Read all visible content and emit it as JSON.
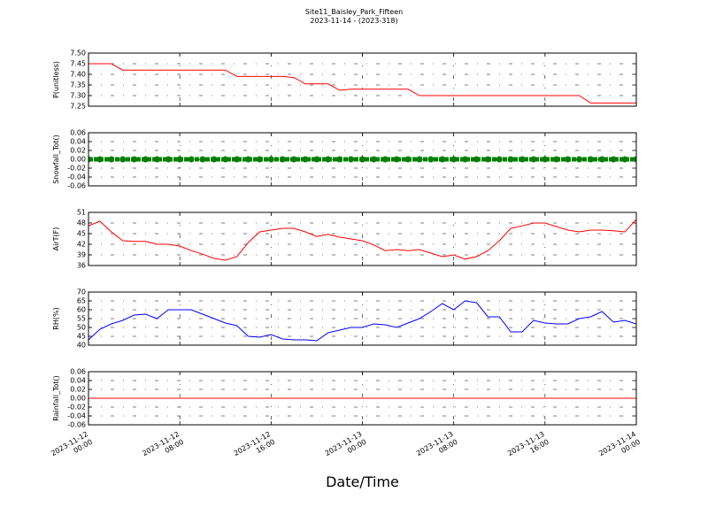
{
  "chart_data": [
    {
      "type": "line",
      "title": "Site11_Baisley_Park_Fifteen",
      "subtitle": "2023-11-14 - (2023-318)",
      "ylabel": "P(unitless)",
      "color": "#ff0000",
      "x": [
        "2023-11-12 00:00",
        "2023-11-12 01:00",
        "2023-11-12 02:00",
        "2023-11-12 03:00",
        "2023-11-12 04:00",
        "2023-11-12 05:00",
        "2023-11-12 06:00",
        "2023-11-12 07:00",
        "2023-11-12 08:00",
        "2023-11-12 09:00",
        "2023-11-12 10:00",
        "2023-11-12 11:00",
        "2023-11-12 12:00",
        "2023-11-12 13:00",
        "2023-11-12 14:00",
        "2023-11-12 15:00",
        "2023-11-12 16:00",
        "2023-11-12 17:00",
        "2023-11-12 18:00",
        "2023-11-12 19:00",
        "2023-11-12 20:00",
        "2023-11-12 21:00",
        "2023-11-12 22:00",
        "2023-11-12 23:00",
        "2023-11-13 00:00",
        "2023-11-13 01:00",
        "2023-11-13 02:00",
        "2023-11-13 03:00",
        "2023-11-13 04:00",
        "2023-11-13 05:00",
        "2023-11-13 06:00",
        "2023-11-13 07:00",
        "2023-11-13 08:00",
        "2023-11-13 09:00",
        "2023-11-13 10:00",
        "2023-11-13 11:00",
        "2023-11-13 12:00",
        "2023-11-13 13:00",
        "2023-11-13 14:00",
        "2023-11-13 15:00",
        "2023-11-13 16:00",
        "2023-11-13 17:00",
        "2023-11-13 18:00",
        "2023-11-13 19:00",
        "2023-11-13 20:00",
        "2023-11-13 21:00",
        "2023-11-13 22:00",
        "2023-11-13 23:00",
        "2023-11-14 00:00"
      ],
      "values": [
        7.45,
        7.45,
        7.45,
        7.42,
        7.42,
        7.42,
        7.42,
        7.42,
        7.42,
        7.42,
        7.42,
        7.42,
        7.42,
        7.39,
        7.39,
        7.39,
        7.39,
        7.39,
        7.385,
        7.355,
        7.355,
        7.355,
        7.325,
        7.33,
        7.33,
        7.33,
        7.33,
        7.33,
        7.33,
        7.3,
        7.3,
        7.3,
        7.3,
        7.3,
        7.3,
        7.3,
        7.3,
        7.3,
        7.3,
        7.3,
        7.3,
        7.3,
        7.3,
        7.3,
        7.265,
        7.265,
        7.265,
        7.265,
        7.265
      ],
      "ylim": [
        7.25,
        7.5
      ],
      "yticks": [
        7.25,
        {
          "value": 7.3,
          "label": "7.30"
        },
        7.35,
        {
          "value": 7.4,
          "label": "7.40"
        },
        7.45,
        {
          "value": 7.5,
          "label": "7.50"
        }
      ],
      "xlim": [
        "2023-11-12 00:00",
        "2023-11-14 00:00"
      ],
      "xticks": [
        "2023-11-12 00:00",
        "2023-11-12 08:00",
        "2023-11-12 16:00",
        "2023-11-13 00:00",
        "2023-11-13 08:00",
        "2023-11-13 16:00",
        "2023-11-14 00:00"
      ],
      "grid": true
    },
    {
      "type": "scatter",
      "ylabel": "Snowfall_Tot()",
      "color": "#008000",
      "x": [
        "2023-11-12 00:00",
        "2023-11-12 01:00",
        "2023-11-12 02:00",
        "2023-11-12 03:00",
        "2023-11-12 04:00",
        "2023-11-12 05:00",
        "2023-11-12 06:00",
        "2023-11-12 07:00",
        "2023-11-12 08:00",
        "2023-11-12 09:00",
        "2023-11-12 10:00",
        "2023-11-12 11:00",
        "2023-11-12 12:00",
        "2023-11-12 13:00",
        "2023-11-12 14:00",
        "2023-11-12 15:00",
        "2023-11-12 16:00",
        "2023-11-12 17:00",
        "2023-11-12 18:00",
        "2023-11-12 19:00",
        "2023-11-12 20:00",
        "2023-11-12 21:00",
        "2023-11-12 22:00",
        "2023-11-12 23:00",
        "2023-11-13 00:00",
        "2023-11-13 01:00",
        "2023-11-13 02:00",
        "2023-11-13 03:00",
        "2023-11-13 04:00",
        "2023-11-13 05:00",
        "2023-11-13 06:00",
        "2023-11-13 07:00",
        "2023-11-13 08:00",
        "2023-11-13 09:00",
        "2023-11-13 10:00",
        "2023-11-13 11:00",
        "2023-11-13 12:00",
        "2023-11-13 13:00",
        "2023-11-13 14:00",
        "2023-11-13 15:00",
        "2023-11-13 16:00",
        "2023-11-13 17:00",
        "2023-11-13 18:00",
        "2023-11-13 19:00",
        "2023-11-13 20:00",
        "2023-11-13 21:00",
        "2023-11-13 22:00",
        "2023-11-13 23:00",
        "2023-11-14 00:00"
      ],
      "values": [
        0,
        0,
        0,
        0,
        0,
        0,
        0,
        0,
        0,
        0,
        0,
        0,
        0,
        0,
        0,
        0,
        0,
        0,
        0,
        0,
        0,
        0,
        0,
        0,
        0,
        0,
        0,
        0,
        0,
        0,
        0,
        0,
        0,
        0,
        0,
        0,
        0,
        0,
        0,
        0,
        0,
        0,
        0,
        0,
        0,
        0,
        0,
        0,
        0
      ],
      "ylim": [
        -0.06,
        0.06
      ],
      "yticks": [
        -0.06,
        -0.04,
        -0.02,
        {
          "value": 0,
          "label": "0.00"
        },
        0.02,
        0.04,
        0.06
      ],
      "xlim": [
        "2023-11-12 00:00",
        "2023-11-14 00:00"
      ],
      "xticks": [
        "2023-11-12 00:00",
        "2023-11-12 08:00",
        "2023-11-12 16:00",
        "2023-11-13 00:00",
        "2023-11-13 08:00",
        "2023-11-13 16:00",
        "2023-11-14 00:00"
      ],
      "grid": true
    },
    {
      "type": "line",
      "ylabel": "AirT(F)",
      "color": "#ff0000",
      "x": [
        "2023-11-12 00:00",
        "2023-11-12 01:00",
        "2023-11-12 02:00",
        "2023-11-12 03:00",
        "2023-11-12 04:00",
        "2023-11-12 05:00",
        "2023-11-12 06:00",
        "2023-11-12 07:00",
        "2023-11-12 08:00",
        "2023-11-12 09:00",
        "2023-11-12 10:00",
        "2023-11-12 11:00",
        "2023-11-12 12:00",
        "2023-11-12 13:00",
        "2023-11-12 14:00",
        "2023-11-12 15:00",
        "2023-11-12 16:00",
        "2023-11-12 17:00",
        "2023-11-12 18:00",
        "2023-11-12 19:00",
        "2023-11-12 20:00",
        "2023-11-12 21:00",
        "2023-11-12 22:00",
        "2023-11-12 23:00",
        "2023-11-13 00:00",
        "2023-11-13 01:00",
        "2023-11-13 02:00",
        "2023-11-13 03:00",
        "2023-11-13 04:00",
        "2023-11-13 05:00",
        "2023-11-13 06:00",
        "2023-11-13 07:00",
        "2023-11-13 08:00",
        "2023-11-13 09:00",
        "2023-11-13 10:00",
        "2023-11-13 11:00",
        "2023-11-13 12:00",
        "2023-11-13 13:00",
        "2023-11-13 14:00",
        "2023-11-13 15:00",
        "2023-11-13 16:00",
        "2023-11-13 17:00",
        "2023-11-13 18:00",
        "2023-11-13 19:00",
        "2023-11-13 20:00",
        "2023-11-13 21:00",
        "2023-11-13 22:00",
        "2023-11-13 23:00",
        "2023-11-14 00:00"
      ],
      "values": [
        47.2,
        48.5,
        45.5,
        43,
        42.8,
        42.8,
        42,
        42,
        41.5,
        40.2,
        39.2,
        38,
        37.5,
        38.5,
        42.5,
        45.5,
        46,
        46.5,
        46.5,
        45.5,
        44.2,
        44.8,
        44,
        43.5,
        43,
        41.8,
        40.2,
        40.5,
        40.2,
        40.5,
        39.5,
        38.5,
        39,
        37.8,
        38.5,
        40.2,
        43,
        46.5,
        47.2,
        48,
        48,
        47,
        46,
        45.5,
        46,
        46,
        45.8,
        45.5,
        49
      ],
      "ylim": [
        36,
        51
      ],
      "yticks": [
        36,
        39,
        42,
        45,
        48,
        51
      ],
      "xlim": [
        "2023-11-12 00:00",
        "2023-11-14 00:00"
      ],
      "xticks": [
        "2023-11-12 00:00",
        "2023-11-12 08:00",
        "2023-11-12 16:00",
        "2023-11-13 00:00",
        "2023-11-13 08:00",
        "2023-11-13 16:00",
        "2023-11-14 00:00"
      ],
      "grid": true
    },
    {
      "type": "line",
      "ylabel": "RH(%)",
      "color": "#0000ff",
      "x": [
        "2023-11-12 00:00",
        "2023-11-12 01:00",
        "2023-11-12 02:00",
        "2023-11-12 03:00",
        "2023-11-12 04:00",
        "2023-11-12 05:00",
        "2023-11-12 06:00",
        "2023-11-12 07:00",
        "2023-11-12 08:00",
        "2023-11-12 09:00",
        "2023-11-12 10:00",
        "2023-11-12 11:00",
        "2023-11-12 12:00",
        "2023-11-12 13:00",
        "2023-11-12 14:00",
        "2023-11-12 15:00",
        "2023-11-12 16:00",
        "2023-11-12 17:00",
        "2023-11-12 18:00",
        "2023-11-12 19:00",
        "2023-11-12 20:00",
        "2023-11-12 21:00",
        "2023-11-12 22:00",
        "2023-11-12 23:00",
        "2023-11-13 00:00",
        "2023-11-13 01:00",
        "2023-11-13 02:00",
        "2023-11-13 03:00",
        "2023-11-13 04:00",
        "2023-11-13 05:00",
        "2023-11-13 06:00",
        "2023-11-13 07:00",
        "2023-11-13 08:00",
        "2023-11-13 09:00",
        "2023-11-13 10:00",
        "2023-11-13 11:00",
        "2023-11-13 12:00",
        "2023-11-13 13:00",
        "2023-11-13 14:00",
        "2023-11-13 15:00",
        "2023-11-13 16:00",
        "2023-11-13 17:00",
        "2023-11-13 18:00",
        "2023-11-13 19:00",
        "2023-11-13 20:00",
        "2023-11-13 21:00",
        "2023-11-13 22:00",
        "2023-11-13 23:00",
        "2023-11-14 00:00"
      ],
      "values": [
        43,
        49,
        52,
        54,
        57,
        57.5,
        55,
        60,
        60,
        60,
        57.5,
        55,
        52.5,
        51,
        45,
        44.5,
        46,
        43.5,
        43,
        43,
        42.5,
        47,
        48.5,
        50,
        50,
        52,
        51.5,
        50,
        52.5,
        55,
        59,
        63.5,
        60,
        65,
        64,
        56,
        56,
        47.5,
        47.5,
        54,
        52.5,
        52,
        52,
        55,
        56,
        59,
        53,
        54,
        52
      ],
      "ylim": [
        40,
        70
      ],
      "yticks": [
        40,
        45,
        50,
        55,
        60,
        65,
        70
      ],
      "xlim": [
        "2023-11-12 00:00",
        "2023-11-14 00:00"
      ],
      "xticks": [
        "2023-11-12 00:00",
        "2023-11-12 08:00",
        "2023-11-12 16:00",
        "2023-11-13 00:00",
        "2023-11-13 08:00",
        "2023-11-13 16:00",
        "2023-11-14 00:00"
      ],
      "grid": true
    },
    {
      "type": "line",
      "ylabel": "Rainfall_Tot()",
      "xlabel": "Date/Time",
      "color": "#ff0000",
      "x": [
        "2023-11-12 00:00",
        "2023-11-12 01:00",
        "2023-11-12 02:00",
        "2023-11-12 03:00",
        "2023-11-12 04:00",
        "2023-11-12 05:00",
        "2023-11-12 06:00",
        "2023-11-12 07:00",
        "2023-11-12 08:00",
        "2023-11-12 09:00",
        "2023-11-12 10:00",
        "2023-11-12 11:00",
        "2023-11-12 12:00",
        "2023-11-12 13:00",
        "2023-11-12 14:00",
        "2023-11-12 15:00",
        "2023-11-12 16:00",
        "2023-11-12 17:00",
        "2023-11-12 18:00",
        "2023-11-12 19:00",
        "2023-11-12 20:00",
        "2023-11-12 21:00",
        "2023-11-12 22:00",
        "2023-11-12 23:00",
        "2023-11-13 00:00",
        "2023-11-13 01:00",
        "2023-11-13 02:00",
        "2023-11-13 03:00",
        "2023-11-13 04:00",
        "2023-11-13 05:00",
        "2023-11-13 06:00",
        "2023-11-13 07:00",
        "2023-11-13 08:00",
        "2023-11-13 09:00",
        "2023-11-13 10:00",
        "2023-11-13 11:00",
        "2023-11-13 12:00",
        "2023-11-13 13:00",
        "2023-11-13 14:00",
        "2023-11-13 15:00",
        "2023-11-13 16:00",
        "2023-11-13 17:00",
        "2023-11-13 18:00",
        "2023-11-13 19:00",
        "2023-11-13 20:00",
        "2023-11-13 21:00",
        "2023-11-13 22:00",
        "2023-11-13 23:00",
        "2023-11-14 00:00"
      ],
      "values": [
        0,
        0,
        0,
        0,
        0,
        0,
        0,
        0,
        0,
        0,
        0,
        0,
        0,
        0,
        0,
        0,
        0,
        0,
        0,
        0,
        0,
        0,
        0,
        0,
        0,
        0,
        0,
        0,
        0,
        0,
        0,
        0,
        0,
        0,
        0,
        0,
        0,
        0,
        0,
        0,
        0,
        0,
        0,
        0,
        0,
        0,
        0,
        0,
        0
      ],
      "ylim": [
        -0.06,
        0.06
      ],
      "yticks": [
        -0.06,
        -0.04,
        -0.02,
        {
          "value": 0,
          "label": "0.00"
        },
        0.02,
        0.04,
        0.06
      ],
      "xlim": [
        "2023-11-12 00:00",
        "2023-11-14 00:00"
      ],
      "xticks": [
        "2023-11-12 00:00",
        "2023-11-12 08:00",
        "2023-11-12 16:00",
        "2023-11-13 00:00",
        "2023-11-13 08:00",
        "2023-11-13 16:00",
        "2023-11-14 00:00"
      ],
      "grid": true
    }
  ]
}
